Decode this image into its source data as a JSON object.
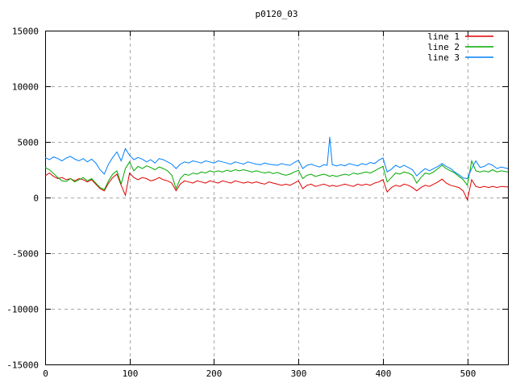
{
  "window": {
    "background": "#ffffff"
  },
  "chart_data": {
    "type": "line",
    "title": "p0120_03",
    "xlabel": "",
    "ylabel": "",
    "xlim": [
      0,
      548
    ],
    "ylim": [
      -15000,
      15000
    ],
    "xticks": [
      0,
      100,
      200,
      300,
      400,
      500
    ],
    "yticks": [
      -15000,
      -10000,
      -5000,
      0,
      5000,
      10000,
      15000
    ],
    "grid": true,
    "grid_style": "dashed",
    "legend_position": "top-right-inside",
    "colors": {
      "axis": "#000000",
      "grid": "#a8a8a8",
      "text": "#000000",
      "background": "#ffffff"
    },
    "x": [
      0,
      5,
      10,
      15,
      20,
      25,
      30,
      35,
      40,
      45,
      50,
      55,
      60,
      65,
      70,
      75,
      80,
      85,
      90,
      95,
      100,
      105,
      110,
      115,
      120,
      125,
      130,
      135,
      140,
      145,
      150,
      155,
      160,
      165,
      170,
      175,
      180,
      185,
      190,
      195,
      200,
      205,
      210,
      215,
      220,
      225,
      230,
      235,
      240,
      245,
      250,
      255,
      260,
      265,
      270,
      275,
      280,
      285,
      290,
      295,
      300,
      305,
      310,
      315,
      320,
      325,
      330,
      334,
      337,
      340,
      345,
      350,
      355,
      360,
      365,
      370,
      375,
      380,
      385,
      390,
      395,
      400,
      405,
      410,
      415,
      420,
      425,
      430,
      435,
      440,
      445,
      450,
      455,
      460,
      465,
      470,
      475,
      480,
      485,
      490,
      495,
      500,
      505,
      510,
      515,
      520,
      525,
      530,
      535,
      540,
      548
    ],
    "series": [
      {
        "name": "line 1",
        "color": "#e00000",
        "values": [
          1950,
          2200,
          1900,
          1700,
          1800,
          1600,
          1700,
          1500,
          1700,
          1600,
          1400,
          1600,
          1200,
          800,
          600,
          1300,
          1800,
          2100,
          1100,
          200,
          2200,
          1800,
          1600,
          1800,
          1700,
          1500,
          1600,
          1800,
          1600,
          1500,
          1300,
          600,
          1200,
          1500,
          1400,
          1300,
          1500,
          1400,
          1300,
          1500,
          1400,
          1300,
          1500,
          1400,
          1300,
          1500,
          1400,
          1300,
          1400,
          1300,
          1400,
          1300,
          1200,
          1400,
          1300,
          1200,
          1100,
          1200,
          1100,
          1300,
          1500,
          800,
          1100,
          1200,
          1000,
          1100,
          1200,
          1100,
          1000,
          1100,
          1000,
          1100,
          1200,
          1100,
          1000,
          1200,
          1100,
          1200,
          1100,
          1300,
          1400,
          1600,
          500,
          900,
          1100,
          1000,
          1200,
          1100,
          900,
          600,
          900,
          1100,
          1000,
          1200,
          1400,
          1650,
          1300,
          1100,
          1000,
          900,
          600,
          -200,
          1600,
          1000,
          900,
          1000,
          900,
          1000,
          900,
          1000,
          950
        ]
      },
      {
        "name": "line 2",
        "color": "#00aa00",
        "values": [
          2700,
          2500,
          2150,
          1800,
          1500,
          1450,
          1700,
          1400,
          1600,
          1800,
          1500,
          1700,
          1300,
          900,
          700,
          1500,
          2100,
          2400,
          1200,
          2600,
          3200,
          2400,
          2800,
          2600,
          2850,
          2700,
          2500,
          2750,
          2600,
          2400,
          2000,
          800,
          1700,
          2100,
          2000,
          2200,
          2100,
          2300,
          2200,
          2400,
          2300,
          2400,
          2300,
          2450,
          2350,
          2500,
          2400,
          2500,
          2400,
          2300,
          2400,
          2300,
          2200,
          2300,
          2150,
          2250,
          2100,
          2000,
          2100,
          2300,
          2450,
          1700,
          2000,
          2100,
          1900,
          2000,
          2100,
          2000,
          1900,
          2000,
          1900,
          2000,
          2100,
          2000,
          2200,
          2100,
          2200,
          2300,
          2200,
          2400,
          2600,
          2800,
          1400,
          1800,
          2200,
          2100,
          2300,
          2200,
          2000,
          1300,
          1800,
          2200,
          2100,
          2300,
          2600,
          2900,
          2600,
          2400,
          2200,
          1900,
          1600,
          1100,
          3300,
          2400,
          2300,
          2400,
          2300,
          2500,
          2300,
          2400,
          2300
        ]
      },
      {
        "name": "line 3",
        "color": "#0080ff",
        "values": [
          3600,
          3400,
          3650,
          3500,
          3300,
          3550,
          3700,
          3450,
          3300,
          3500,
          3200,
          3450,
          3100,
          2500,
          2100,
          3000,
          3600,
          4100,
          3300,
          4400,
          3800,
          3400,
          3600,
          3450,
          3200,
          3400,
          3100,
          3500,
          3400,
          3200,
          3000,
          2600,
          3000,
          3200,
          3100,
          3300,
          3200,
          3100,
          3300,
          3200,
          3100,
          3300,
          3200,
          3100,
          3000,
          3200,
          3100,
          3000,
          3200,
          3100,
          3000,
          2950,
          3100,
          3000,
          2950,
          2900,
          3050,
          2950,
          2900,
          3150,
          3350,
          2600,
          2900,
          3000,
          2850,
          2750,
          2950,
          2900,
          5450,
          2950,
          2850,
          2950,
          2850,
          3050,
          2950,
          2850,
          3050,
          2950,
          3150,
          3050,
          3350,
          3550,
          2300,
          2550,
          2900,
          2700,
          2900,
          2700,
          2500,
          1950,
          2300,
          2600,
          2400,
          2600,
          2800,
          3050,
          2800,
          2600,
          2300,
          2050,
          1750,
          1700,
          2600,
          3300,
          2700,
          2800,
          3050,
          2900,
          2600,
          2750,
          2600
        ]
      }
    ]
  }
}
